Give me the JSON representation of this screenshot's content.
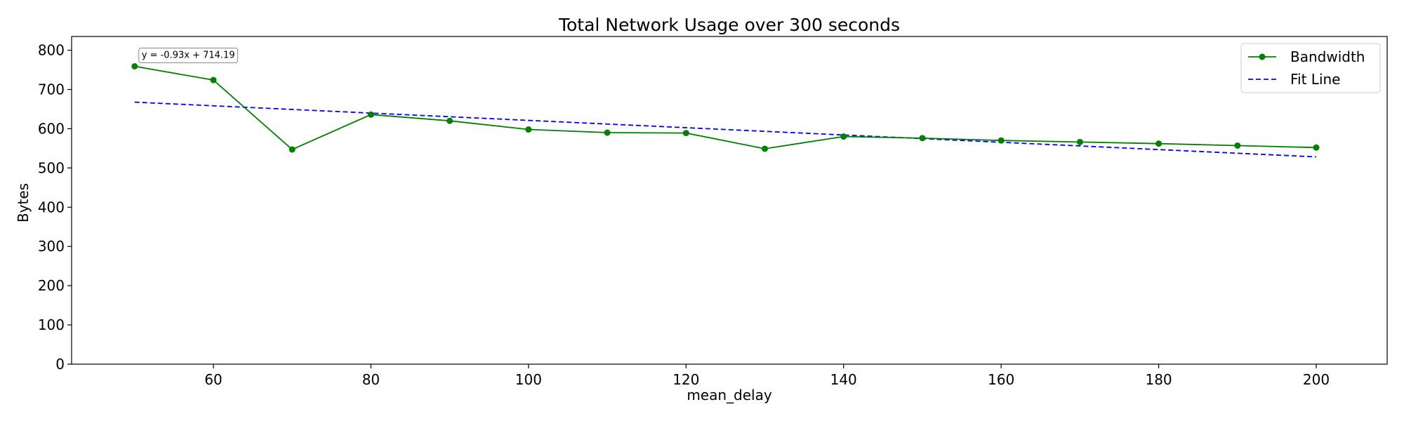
{
  "chart_data": {
    "type": "line",
    "title": "Total Network Usage over 300 seconds",
    "xlabel": "mean_delay",
    "ylabel": "Bytes",
    "xlim": [
      42,
      209
    ],
    "ylim": [
      0,
      835
    ],
    "xticks": [
      60,
      80,
      100,
      120,
      140,
      160,
      180,
      200
    ],
    "yticks": [
      0,
      100,
      200,
      300,
      400,
      500,
      600,
      700,
      800
    ],
    "grid": false,
    "legend_position": "top-right",
    "x": [
      50,
      60,
      70,
      80,
      90,
      100,
      110,
      120,
      130,
      140,
      150,
      160,
      170,
      180,
      190,
      200
    ],
    "series": [
      {
        "name": "Bandwidth",
        "style": "solid-markers",
        "color": "#008000",
        "values": [
          759,
          724,
          547,
          636,
          620,
          598,
          590,
          589,
          549,
          580,
          576,
          570,
          566,
          562,
          557,
          552
        ]
      },
      {
        "name": "Fit Line",
        "style": "dashed",
        "color": "#0000ff",
        "slope": -0.93,
        "intercept": 714.19
      }
    ],
    "annotation": {
      "text": "y = -0.93x + 714.19",
      "x": 50,
      "y": 759
    }
  }
}
